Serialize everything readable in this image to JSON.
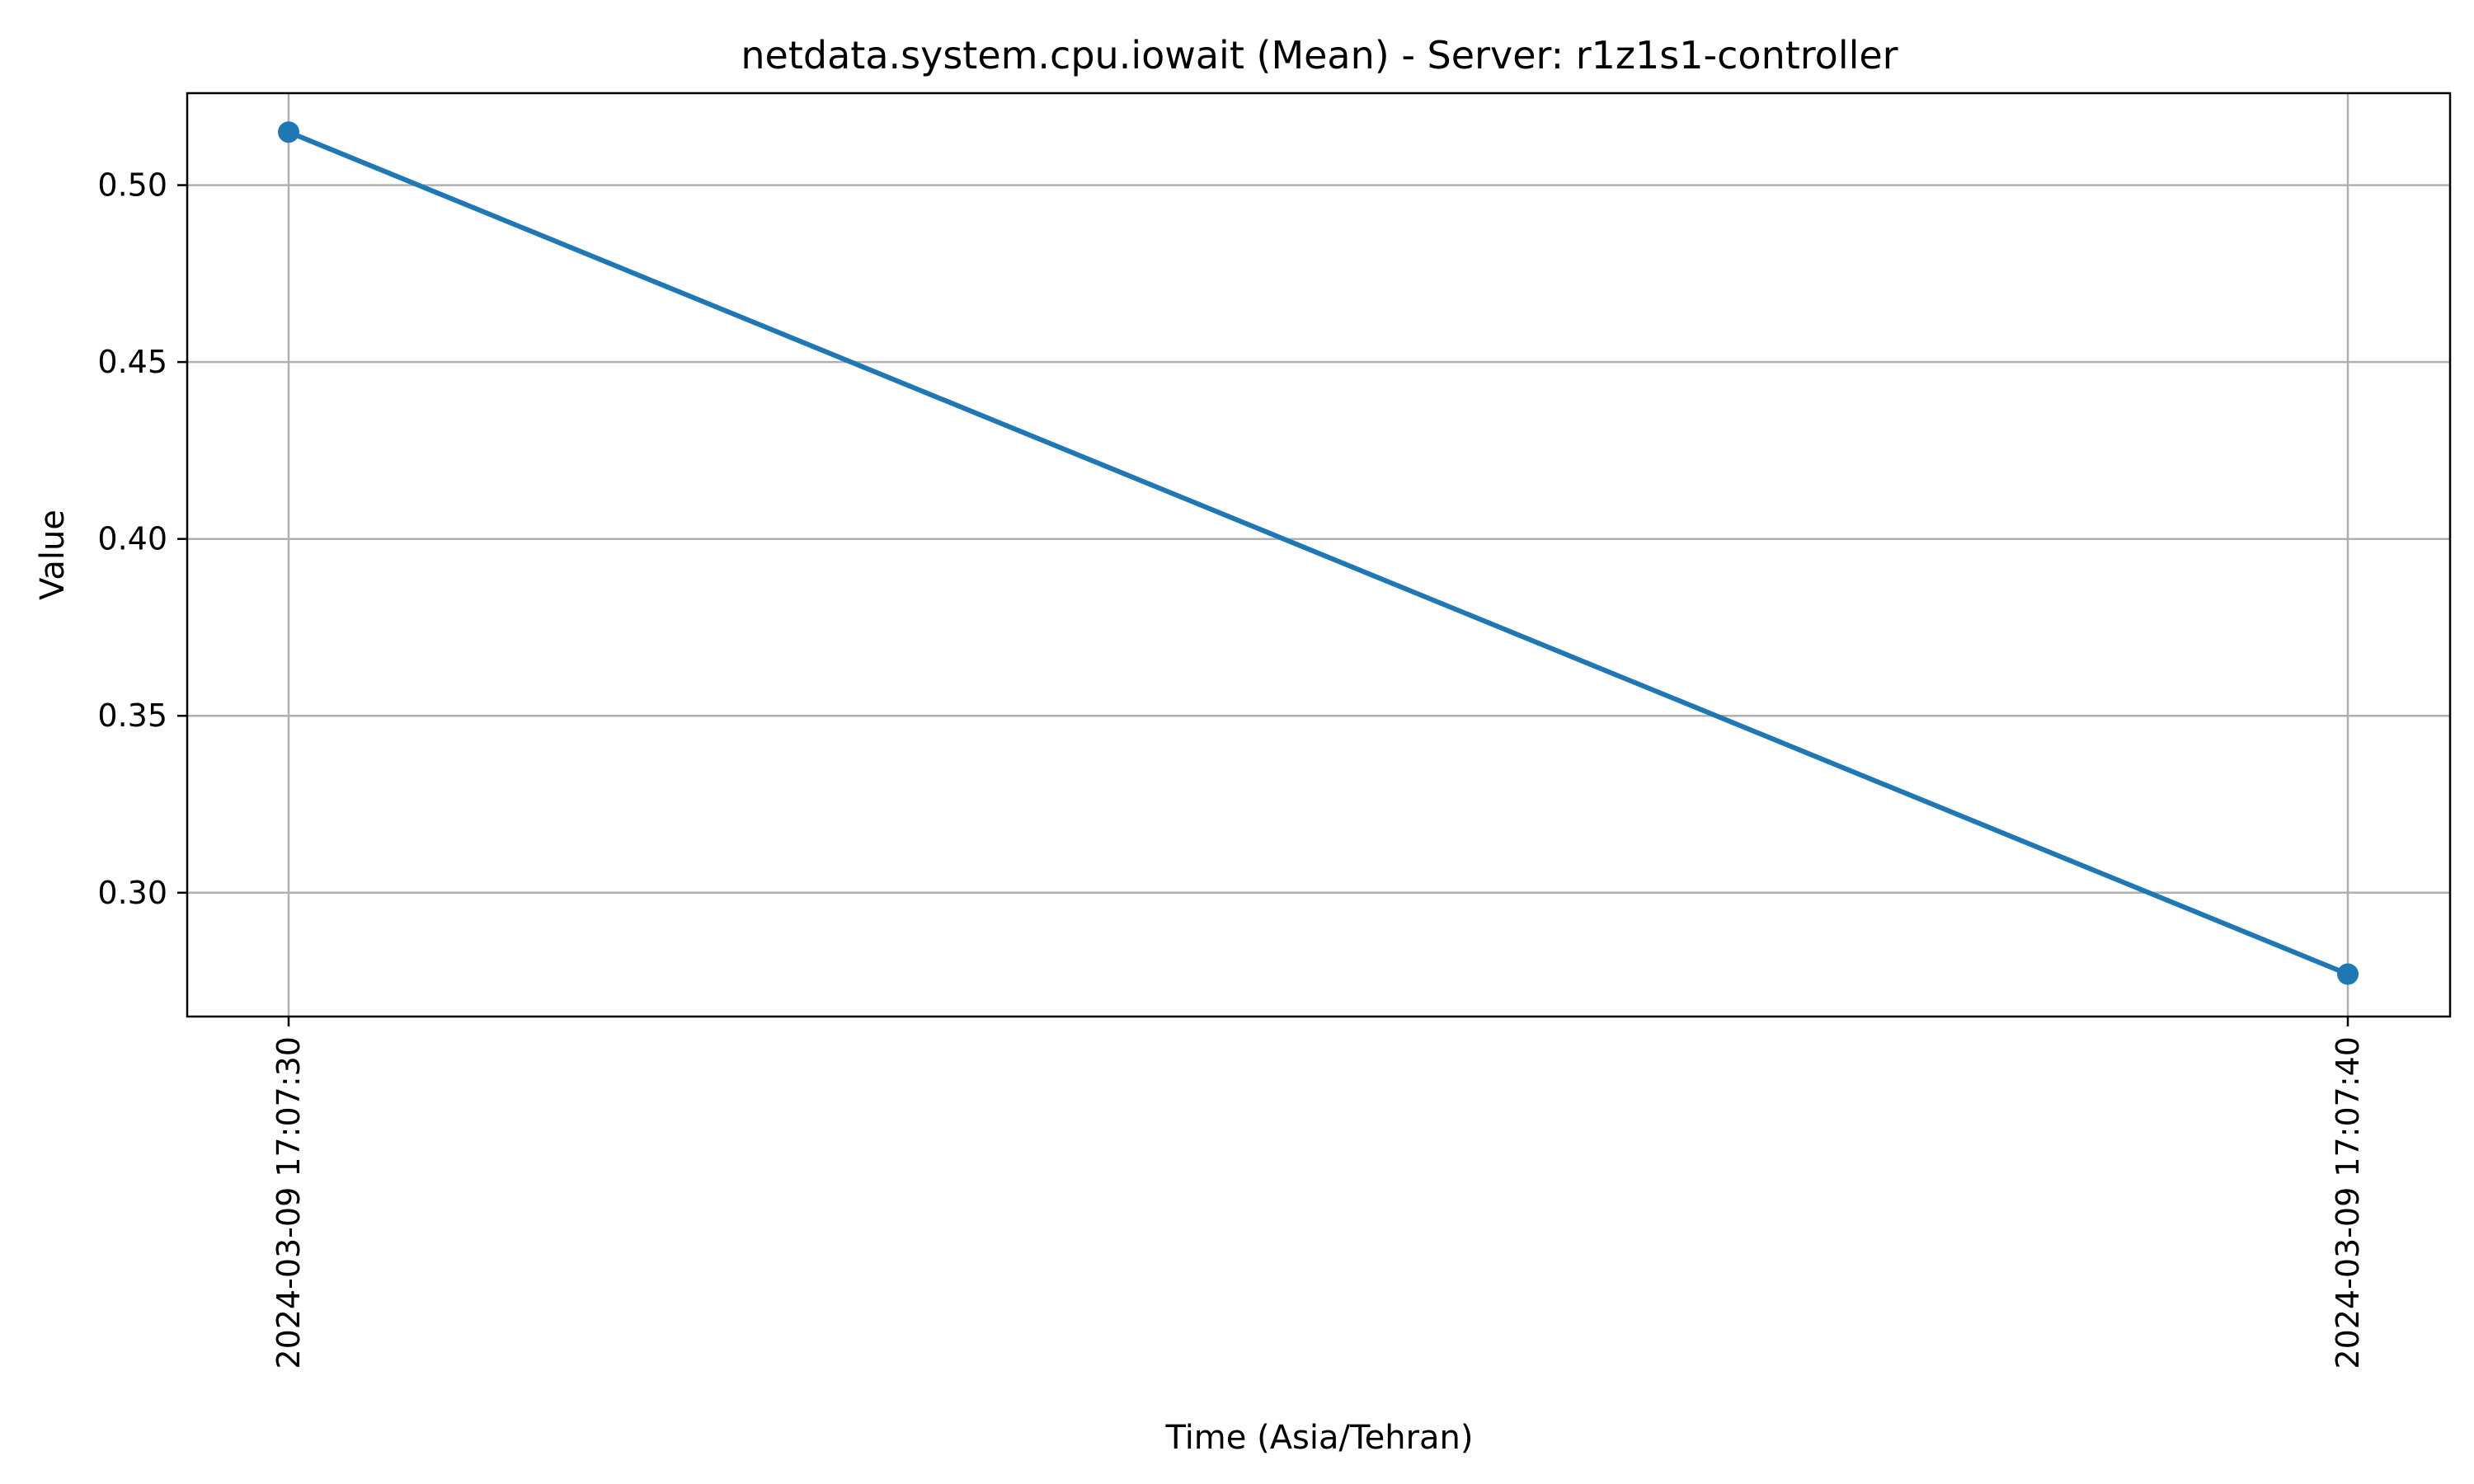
{
  "chart_data": {
    "type": "line",
    "title": "netdata.system.cpu.iowait (Mean) - Server: r1z1s1-controller",
    "xlabel": "Time (Asia/Tehran)",
    "ylabel": "Value",
    "x": [
      "2024-03-09 17:07:30",
      "2024-03-09 17:07:40"
    ],
    "series": [
      {
        "values": [
          0.515,
          0.277
        ],
        "color": "#1f77b4",
        "marker": "circle"
      }
    ],
    "ylim": [
      0.265,
      0.526
    ],
    "yticks": [
      0.3,
      0.35,
      0.4,
      0.45,
      0.5
    ],
    "ytick_labels": [
      "0.30",
      "0.35",
      "0.40",
      "0.45",
      "0.50"
    ],
    "xtick_labels": [
      "2024-03-09 17:07:30",
      "2024-03-09 17:07:40"
    ],
    "grid": true,
    "legend": "none"
  }
}
